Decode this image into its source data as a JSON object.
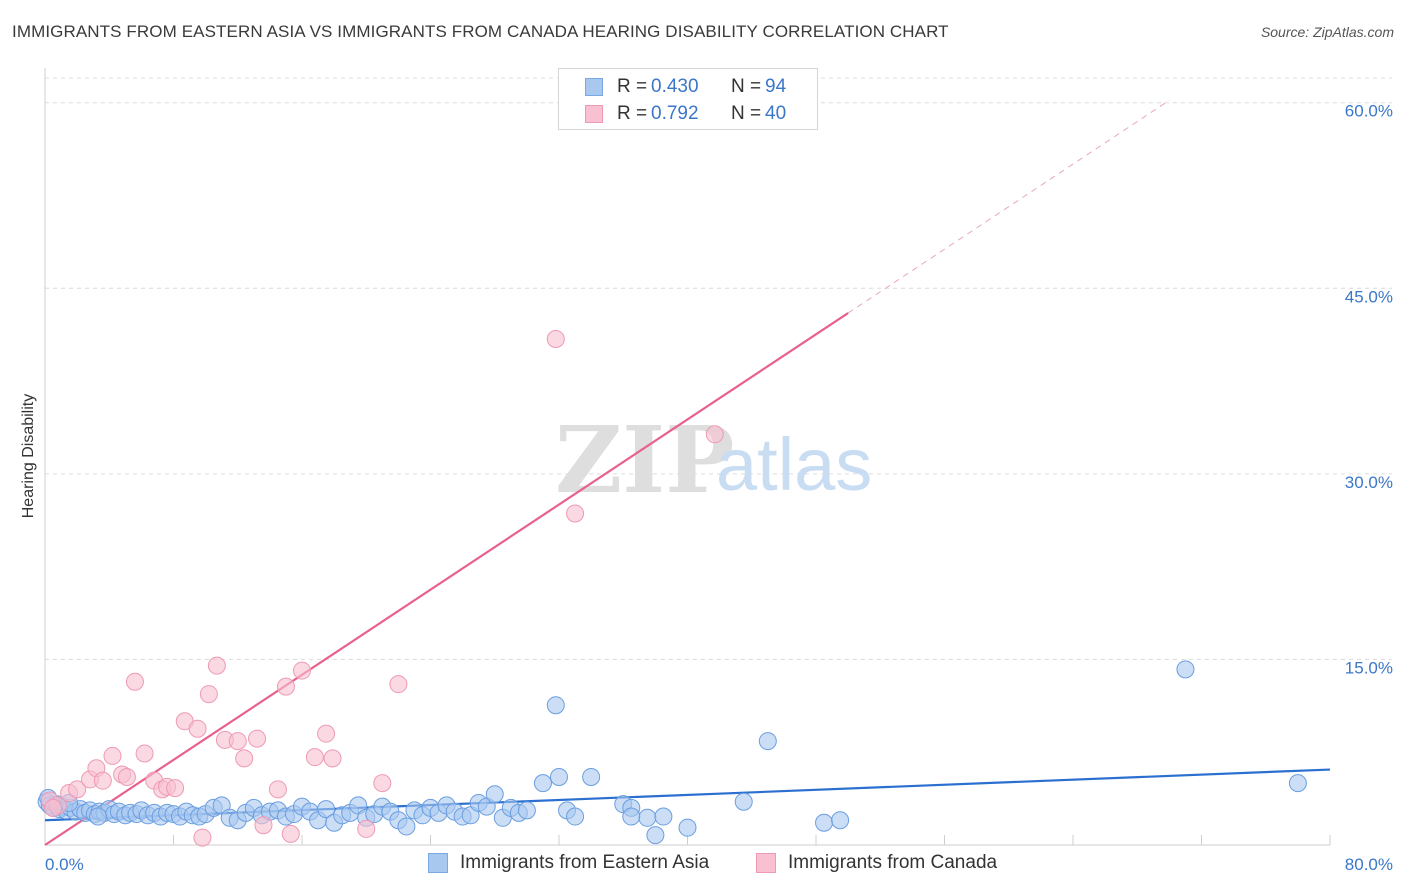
{
  "title": "IMMIGRANTS FROM EASTERN ASIA VS IMMIGRANTS FROM CANADA HEARING DISABILITY CORRELATION CHART",
  "source": "Source: ZipAtlas.com",
  "watermark": {
    "zip": "ZIP",
    "atlas": "atlas"
  },
  "legend": {
    "r_label": "R =",
    "n_label": "N =",
    "rows": [
      {
        "r": "0.430",
        "n": "94",
        "color": "#a8c8f0",
        "stroke": "#7aa8e0"
      },
      {
        "r": "0.792",
        "n": "40",
        "color": "#f8c0d0",
        "stroke": "#ee9ab4"
      }
    ]
  },
  "chart_data": {
    "type": "scatter",
    "title": "IMMIGRANTS FROM EASTERN ASIA VS IMMIGRANTS FROM CANADA HEARING DISABILITY CORRELATION CHART",
    "xlabel": "",
    "ylabel": "Hearing Disability",
    "xlim": [
      0,
      80
    ],
    "ylim": [
      0,
      62
    ],
    "x_tick_labels": [
      {
        "value": 0,
        "label": "0.0%"
      },
      {
        "value": 80,
        "label": "80.0%"
      }
    ],
    "y_tick_labels": [
      {
        "value": 15,
        "label": "15.0%"
      },
      {
        "value": 30,
        "label": "30.0%"
      },
      {
        "value": 45,
        "label": "45.0%"
      },
      {
        "value": 60,
        "label": "60.0%"
      }
    ],
    "grid": true,
    "series": [
      {
        "name": "Immigrants from Eastern Asia",
        "color": "#a8c8f0",
        "stroke": "#6a9ee0",
        "line_color": "#2b6fd0",
        "trend": {
          "x0": 0,
          "y0": 2.0,
          "x1": 80,
          "y1": 6.1
        },
        "points": [
          [
            0.1,
            3.5
          ],
          [
            0.3,
            3.2
          ],
          [
            0.5,
            3.0
          ],
          [
            0.7,
            3.3
          ],
          [
            0.9,
            2.9
          ],
          [
            1.1,
            3.1
          ],
          [
            1.3,
            2.8
          ],
          [
            1.6,
            3.0
          ],
          [
            1.9,
            2.7
          ],
          [
            2.2,
            2.9
          ],
          [
            2.5,
            2.6
          ],
          [
            2.8,
            2.8
          ],
          [
            3.1,
            2.5
          ],
          [
            3.4,
            2.7
          ],
          [
            3.7,
            2.6
          ],
          [
            4.0,
            2.9
          ],
          [
            4.3,
            2.5
          ],
          [
            4.6,
            2.7
          ],
          [
            5.0,
            2.4
          ],
          [
            5.3,
            2.6
          ],
          [
            5.7,
            2.5
          ],
          [
            6.0,
            2.8
          ],
          [
            6.4,
            2.4
          ],
          [
            6.8,
            2.6
          ],
          [
            7.2,
            2.3
          ],
          [
            7.6,
            2.6
          ],
          [
            8.0,
            2.5
          ],
          [
            8.4,
            2.3
          ],
          [
            8.8,
            2.7
          ],
          [
            9.2,
            2.4
          ],
          [
            9.6,
            2.3
          ],
          [
            10.0,
            2.5
          ],
          [
            10.5,
            3.0
          ],
          [
            11.0,
            3.2
          ],
          [
            11.5,
            2.2
          ],
          [
            12.0,
            2.0
          ],
          [
            12.5,
            2.6
          ],
          [
            13.0,
            3.0
          ],
          [
            13.5,
            2.4
          ],
          [
            14.0,
            2.7
          ],
          [
            14.5,
            2.8
          ],
          [
            15.0,
            2.3
          ],
          [
            15.5,
            2.5
          ],
          [
            16.0,
            3.1
          ],
          [
            16.5,
            2.7
          ],
          [
            17.0,
            2.0
          ],
          [
            17.5,
            2.9
          ],
          [
            18.0,
            1.8
          ],
          [
            18.5,
            2.4
          ],
          [
            19.0,
            2.6
          ],
          [
            19.5,
            3.2
          ],
          [
            20.0,
            2.2
          ],
          [
            20.5,
            2.5
          ],
          [
            21.0,
            3.1
          ],
          [
            21.5,
            2.7
          ],
          [
            22.0,
            2.0
          ],
          [
            22.5,
            1.5
          ],
          [
            23.0,
            2.8
          ],
          [
            23.5,
            2.4
          ],
          [
            24.0,
            3.0
          ],
          [
            24.5,
            2.6
          ],
          [
            25.0,
            3.2
          ],
          [
            25.5,
            2.7
          ],
          [
            26.0,
            2.3
          ],
          [
            26.5,
            2.4
          ],
          [
            27.0,
            3.4
          ],
          [
            27.5,
            3.1
          ],
          [
            28.0,
            4.1
          ],
          [
            28.5,
            2.2
          ],
          [
            29.0,
            3.0
          ],
          [
            29.5,
            2.6
          ],
          [
            30.0,
            2.8
          ],
          [
            31.0,
            5.0
          ],
          [
            32.0,
            5.5
          ],
          [
            32.5,
            2.8
          ],
          [
            33.0,
            2.3
          ],
          [
            34.0,
            5.5
          ],
          [
            36.0,
            3.3
          ],
          [
            36.5,
            3.0
          ],
          [
            37.5,
            2.2
          ],
          [
            38.0,
            0.8
          ],
          [
            38.5,
            2.3
          ],
          [
            40.0,
            1.4
          ],
          [
            43.5,
            3.5
          ],
          [
            45.0,
            8.4
          ],
          [
            48.5,
            1.8
          ],
          [
            49.5,
            2.0
          ],
          [
            31.8,
            11.3
          ],
          [
            71.0,
            14.2
          ],
          [
            78.0,
            5.0
          ],
          [
            0.2,
            3.8
          ],
          [
            1.5,
            3.4
          ],
          [
            3.3,
            2.3
          ],
          [
            36.5,
            2.3
          ]
        ]
      },
      {
        "name": "Immigrants from Canada",
        "color": "#f8c0d0",
        "stroke": "#ee9ab4",
        "line_color": "#e8608c",
        "trend": {
          "x0": 0,
          "y0": 0.0,
          "x1": 50,
          "y1": 43.0
        },
        "trend_dashed": {
          "x0": 50,
          "y0": 43.0,
          "x1": 70,
          "y1": 60.2
        },
        "points": [
          [
            0.3,
            3.6
          ],
          [
            0.8,
            3.2
          ],
          [
            1.5,
            4.2
          ],
          [
            2.0,
            4.5
          ],
          [
            2.8,
            5.3
          ],
          [
            3.2,
            6.2
          ],
          [
            3.6,
            5.2
          ],
          [
            4.2,
            7.2
          ],
          [
            4.8,
            5.7
          ],
          [
            5.1,
            5.5
          ],
          [
            5.6,
            13.2
          ],
          [
            6.2,
            7.4
          ],
          [
            6.8,
            5.2
          ],
          [
            7.3,
            4.5
          ],
          [
            7.6,
            4.7
          ],
          [
            8.1,
            4.6
          ],
          [
            8.7,
            10.0
          ],
          [
            9.5,
            9.4
          ],
          [
            10.2,
            12.2
          ],
          [
            10.7,
            14.5
          ],
          [
            11.2,
            8.5
          ],
          [
            12.0,
            8.4
          ],
          [
            12.4,
            7.0
          ],
          [
            13.2,
            8.6
          ],
          [
            13.6,
            1.6
          ],
          [
            14.5,
            4.5
          ],
          [
            15.0,
            12.8
          ],
          [
            15.3,
            0.9
          ],
          [
            16.0,
            14.1
          ],
          [
            16.8,
            7.1
          ],
          [
            17.5,
            9.0
          ],
          [
            17.9,
            7.0
          ],
          [
            20.0,
            1.3
          ],
          [
            21.0,
            5.0
          ],
          [
            22.0,
            13.0
          ],
          [
            31.8,
            40.9
          ],
          [
            33.0,
            26.8
          ],
          [
            41.7,
            33.2
          ],
          [
            0.5,
            3.0
          ],
          [
            9.8,
            0.6
          ]
        ]
      }
    ]
  },
  "bottom_legend": [
    {
      "label": "Immigrants from Eastern Asia",
      "color": "#a8c8f0",
      "stroke": "#7aa8e0"
    },
    {
      "label": "Immigrants from Canada",
      "color": "#f8c0d0",
      "stroke": "#ee9ab4"
    }
  ]
}
